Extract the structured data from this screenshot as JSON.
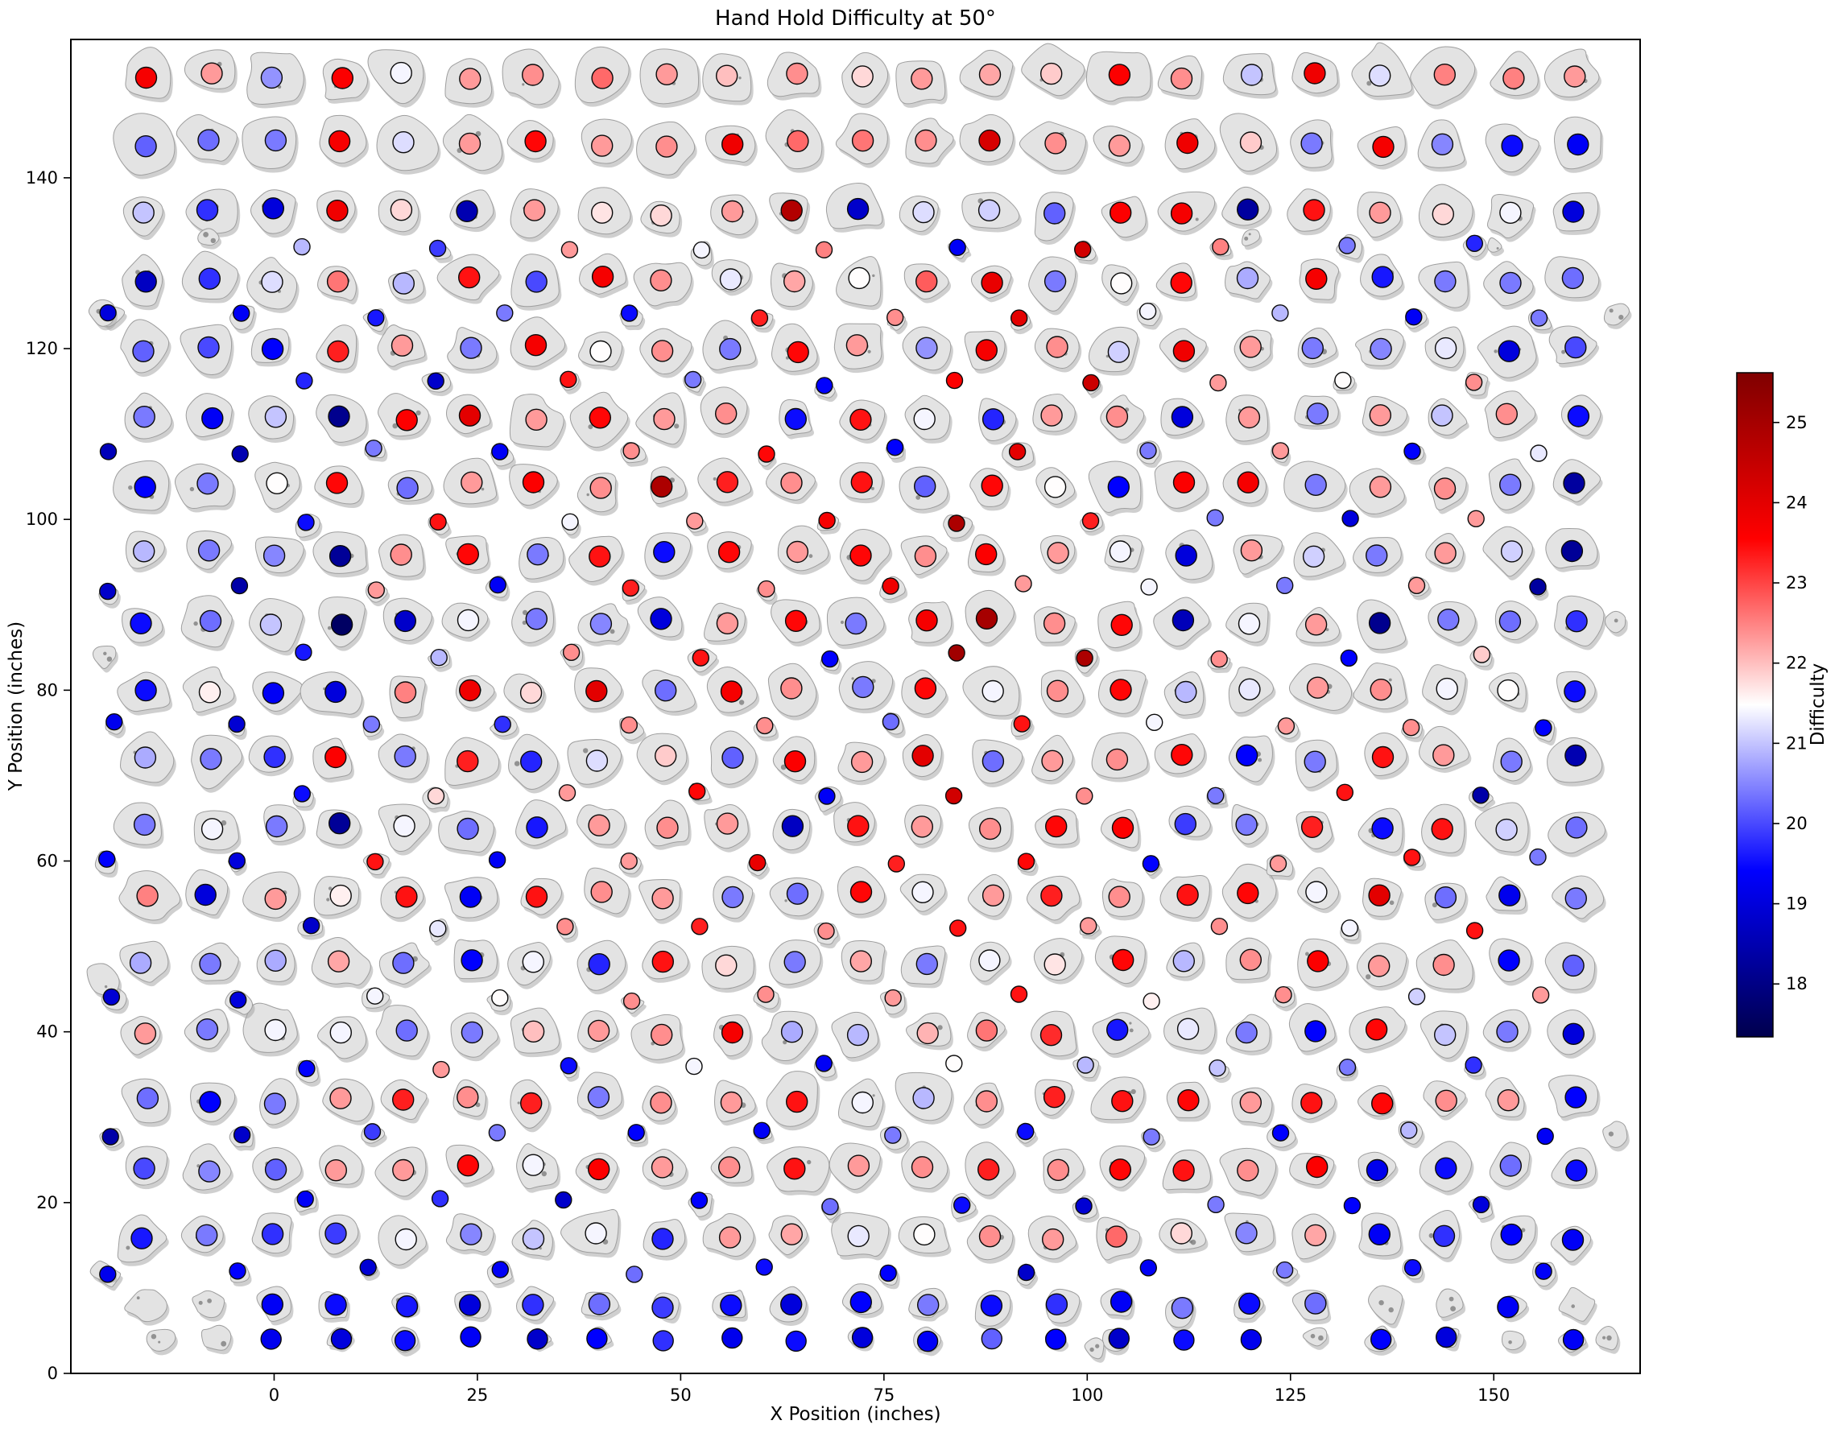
{
  "title": "Hand Hold Difficulty at 50°",
  "axes": {
    "xlabel": "X Position (inches)",
    "ylabel": "Y Position (inches)",
    "x_ticks": [
      0,
      25,
      50,
      75,
      100,
      125,
      150
    ],
    "y_ticks": [
      0,
      20,
      40,
      60,
      80,
      100,
      120,
      140
    ],
    "xlim": [
      -25,
      168
    ],
    "ylim": [
      0,
      156.2
    ]
  },
  "colorbar": {
    "label": "Difficulty",
    "ticks": [
      18,
      19,
      20,
      21,
      22,
      23,
      24,
      25
    ],
    "vmin": 17.34,
    "vmax": 25.62,
    "colormap": "seismic"
  },
  "style": {
    "hold_fill": "#e3e3e3",
    "hold_edge": "#9e9e9e",
    "hold_shadow": "#a0a0a0",
    "dot_outline": "#0a0a0a",
    "background": "#ffffff"
  },
  "chart_data": {
    "type": "scatter",
    "title": "Hand Hold Difficulty at 50°",
    "xlabel": "X Position (inches)",
    "ylabel": "Y Position (inches)",
    "xlim": [
      -25,
      168
    ],
    "ylim": [
      0,
      156.2
    ],
    "color_scale": {
      "colormap": "seismic",
      "vmin": 17.34,
      "vmax": 25.62,
      "label": "Difficulty"
    },
    "grid": false,
    "main_rows": [
      {
        "y": 152,
        "x_start": -16,
        "x_step": 8,
        "values": [
          23.7,
          22.3,
          20.6,
          23.6,
          21.4,
          22.3,
          22.4,
          22.7,
          22.3,
          22.0,
          22.4,
          21.8,
          22.3,
          22.2,
          21.9,
          23.6,
          22.4,
          21.0,
          23.8,
          21.2,
          22.5,
          22.5,
          22.3
        ]
      },
      {
        "y": 144,
        "x_start": -16,
        "x_step": 8,
        "values": [
          20.2,
          20.3,
          20.4,
          23.7,
          21.2,
          22.3,
          23.5,
          22.3,
          22.4,
          23.8,
          22.7,
          22.6,
          22.4,
          24.2,
          22.4,
          22.3,
          23.8,
          21.9,
          20.4,
          23.7,
          20.5,
          19.5,
          19.3
        ]
      },
      {
        "y": 136,
        "x_start": -16,
        "x_step": 8,
        "values": [
          21.0,
          19.8,
          19.0,
          23.8,
          21.8,
          18.5,
          22.3,
          21.7,
          21.8,
          22.3,
          24.8,
          18.8,
          21.2,
          21.1,
          20.2,
          23.6,
          23.7,
          18.3,
          23.4,
          22.3,
          21.8,
          21.4,
          19.0
        ]
      },
      {
        "y": 128,
        "x_start": -16,
        "x_step": 8,
        "values": [
          18.7,
          19.8,
          21.2,
          22.6,
          20.9,
          23.4,
          20.0,
          23.7,
          22.4,
          21.3,
          22.2,
          21.5,
          22.8,
          23.9,
          20.4,
          21.5,
          23.5,
          20.8,
          23.7,
          19.6,
          20.4,
          20.4,
          20.3
        ]
      },
      {
        "y": 120,
        "x_start": -16,
        "x_step": 8,
        "values": [
          20.2,
          20.0,
          19.4,
          23.3,
          22.3,
          20.4,
          23.7,
          21.5,
          22.4,
          20.4,
          23.5,
          22.3,
          20.6,
          23.7,
          22.4,
          21.1,
          23.8,
          22.3,
          20.4,
          20.5,
          21.3,
          19.0,
          20.0
        ]
      },
      {
        "y": 112,
        "x_start": -16,
        "x_step": 8,
        "values": [
          20.4,
          19.3,
          21.0,
          18.1,
          23.6,
          24.0,
          22.3,
          23.5,
          22.3,
          22.4,
          19.5,
          23.4,
          21.4,
          19.7,
          22.3,
          22.4,
          19.0,
          22.3,
          20.4,
          22.3,
          21.0,
          22.4,
          19.5
        ]
      },
      {
        "y": 104,
        "x_start": -16,
        "x_step": 8,
        "values": [
          19.4,
          20.4,
          21.5,
          23.5,
          20.3,
          22.3,
          23.6,
          22.4,
          24.9,
          23.3,
          22.4,
          23.4,
          20.2,
          23.5,
          21.5,
          19.4,
          23.6,
          23.7,
          20.4,
          22.3,
          22.4,
          20.4,
          18.3
        ]
      },
      {
        "y": 96,
        "x_start": -16,
        "x_step": 8,
        "values": [
          20.9,
          20.4,
          20.5,
          18.2,
          22.4,
          23.5,
          20.4,
          23.4,
          19.5,
          23.5,
          22.3,
          23.5,
          22.4,
          23.6,
          22.3,
          21.4,
          19.0,
          22.3,
          21.1,
          20.4,
          22.3,
          21.1,
          18.2
        ]
      },
      {
        "y": 88,
        "x_start": -16,
        "x_step": 8,
        "values": [
          19.5,
          20.3,
          21.0,
          17.6,
          18.8,
          21.4,
          20.4,
          20.5,
          19.0,
          22.3,
          23.5,
          20.4,
          23.7,
          25.0,
          22.4,
          23.5,
          18.6,
          21.4,
          22.3,
          18.1,
          20.4,
          20.3,
          19.8
        ]
      },
      {
        "y": 80,
        "x_start": -16,
        "x_step": 8,
        "values": [
          19.5,
          21.6,
          19.3,
          19.0,
          22.5,
          23.8,
          21.8,
          24.0,
          20.3,
          23.7,
          22.4,
          20.4,
          23.5,
          21.4,
          22.4,
          23.5,
          20.9,
          21.3,
          22.3,
          22.4,
          21.4,
          21.5,
          19.5
        ]
      },
      {
        "y": 72,
        "x_start": -16,
        "x_step": 8,
        "values": [
          20.8,
          20.4,
          19.8,
          23.6,
          20.4,
          23.3,
          19.7,
          21.2,
          21.9,
          20.2,
          23.6,
          22.3,
          24.0,
          20.3,
          22.3,
          22.4,
          23.5,
          19.4,
          20.4,
          23.4,
          22.3,
          20.4,
          18.5
        ]
      },
      {
        "y": 64,
        "x_start": -16,
        "x_step": 8,
        "values": [
          20.4,
          21.4,
          20.4,
          18.2,
          21.4,
          20.3,
          19.6,
          22.3,
          22.4,
          22.3,
          18.7,
          23.4,
          22.3,
          22.4,
          23.5,
          23.6,
          19.9,
          20.4,
          23.3,
          19.5,
          23.4,
          21.1,
          20.3
        ]
      },
      {
        "y": 56,
        "x_start": -16,
        "x_step": 8,
        "values": [
          22.5,
          19.0,
          22.3,
          21.6,
          23.4,
          19.3,
          23.4,
          22.4,
          22.3,
          20.4,
          20.3,
          23.5,
          21.4,
          22.3,
          23.3,
          22.4,
          23.4,
          23.5,
          21.4,
          24.0,
          20.3,
          19.2,
          20.4
        ]
      },
      {
        "y": 48,
        "x_start": -16,
        "x_step": 8,
        "values": [
          20.8,
          20.4,
          20.8,
          22.2,
          20.3,
          19.4,
          21.4,
          19.7,
          23.4,
          21.8,
          20.4,
          22.2,
          20.4,
          21.4,
          21.7,
          23.5,
          20.9,
          22.4,
          23.6,
          22.3,
          22.4,
          19.4,
          20.2
        ]
      },
      {
        "y": 40,
        "x_start": -16,
        "x_step": 8,
        "values": [
          22.3,
          20.4,
          21.4,
          21.4,
          20.3,
          20.4,
          22.0,
          22.3,
          22.4,
          23.7,
          20.8,
          20.9,
          22.1,
          22.6,
          23.2,
          19.6,
          21.3,
          20.4,
          19.4,
          23.5,
          21.0,
          20.4,
          19.0
        ]
      },
      {
        "y": 32,
        "x_start": -16,
        "x_step": 8,
        "values": [
          20.3,
          19.4,
          20.4,
          22.3,
          23.3,
          22.4,
          23.3,
          20.4,
          22.4,
          22.3,
          23.4,
          21.4,
          20.9,
          22.4,
          23.3,
          23.4,
          23.5,
          22.3,
          23.4,
          23.5,
          22.4,
          22.3,
          19.4
        ]
      },
      {
        "y": 24,
        "x_start": -16,
        "x_step": 8,
        "values": [
          20.0,
          20.5,
          20.2,
          22.3,
          22.3,
          23.5,
          21.4,
          23.6,
          22.3,
          22.4,
          23.4,
          22.3,
          22.4,
          23.3,
          22.4,
          23.5,
          23.4,
          22.4,
          23.6,
          19.2,
          19.5,
          20.3,
          19.5
        ]
      },
      {
        "y": 16,
        "x_start": -16,
        "x_step": 8,
        "values": [
          19.6,
          20.4,
          19.8,
          19.9,
          21.4,
          20.5,
          21.0,
          21.4,
          19.7,
          22.3,
          22.2,
          21.3,
          21.5,
          22.4,
          22.3,
          22.7,
          21.8,
          20.5,
          22.2,
          19.3,
          19.8,
          19.4,
          19.3
        ]
      },
      {
        "y": 8,
        "x_start": -16,
        "x_step": 8,
        "values": [
          null,
          null,
          19.3,
          19.5,
          19.6,
          19.0,
          19.8,
          20.3,
          19.9,
          19.5,
          19.0,
          19.4,
          20.4,
          19.5,
          19.8,
          19.3,
          20.4,
          19.5,
          20.3,
          null,
          null,
          19.3,
          null
        ]
      }
    ],
    "bottom_row": {
      "y": 4,
      "x_start": 0,
      "x_step": 8,
      "values": [
        19.2,
        19.0,
        19.5,
        19.3,
        18.8,
        19.4,
        19.8,
        19.2,
        19.5,
        19.0,
        19.3,
        20.2,
        19.4,
        18.8,
        19.5,
        19.2,
        null,
        19.4,
        19.0,
        null,
        19.3
      ]
    },
    "intermediate_rows": [
      {
        "y": 132,
        "x_start": 4,
        "x_step": 16,
        "values": [
          20.9,
          19.9,
          22.3,
          21.4,
          22.5,
          19.3,
          24.3,
          22.5,
          20.4,
          19.7
        ]
      },
      {
        "y": 124,
        "x_start": -20,
        "x_step": 16,
        "values": [
          19.0,
          19.3,
          19.6,
          20.4,
          19.5,
          23.3,
          22.4,
          24.0,
          21.4,
          20.9,
          19.3,
          20.4
        ]
      },
      {
        "y": 116,
        "x_start": 4,
        "x_step": 16,
        "values": [
          19.7,
          18.8,
          23.4,
          20.4,
          19.4,
          23.6,
          24.4,
          22.3,
          21.5,
          22.4
        ]
      },
      {
        "y": 108,
        "x_start": -20,
        "x_step": 16,
        "values": [
          18.6,
          18.5,
          20.4,
          19.3,
          22.4,
          23.5,
          19.4,
          24.0,
          20.4,
          22.3,
          19.4,
          21.3
        ]
      },
      {
        "y": 100,
        "x_start": 4,
        "x_step": 16,
        "values": [
          19.5,
          23.4,
          21.4,
          22.3,
          23.7,
          24.9,
          23.3,
          20.4,
          19.0,
          22.3
        ]
      },
      {
        "y": 92,
        "x_start": -20,
        "x_step": 16,
        "values": [
          18.8,
          18.4,
          22.3,
          19.3,
          23.3,
          22.4,
          23.8,
          22.3,
          21.4,
          20.4,
          22.3,
          18.3
        ]
      },
      {
        "y": 84,
        "x_start": 4,
        "x_step": 16,
        "values": [
          19.6,
          20.9,
          22.4,
          23.4,
          19.4,
          25.1,
          24.9,
          22.4,
          19.4,
          21.9
        ]
      },
      {
        "y": 76,
        "x_start": -20,
        "x_step": 16,
        "values": [
          19.2,
          18.9,
          20.4,
          19.8,
          22.4,
          22.4,
          20.3,
          23.4,
          21.4,
          22.3,
          22.4,
          19.4
        ]
      },
      {
        "y": 68,
        "x_start": 4,
        "x_step": 16,
        "values": [
          19.5,
          21.8,
          22.3,
          23.5,
          19.3,
          24.3,
          22.4,
          20.4,
          23.4,
          18.4
        ]
      },
      {
        "y": 60,
        "x_start": -20,
        "x_step": 16,
        "values": [
          19.4,
          19.0,
          23.4,
          19.3,
          22.3,
          23.9,
          23.3,
          23.5,
          19.4,
          22.3,
          23.4,
          20.4
        ]
      },
      {
        "y": 52,
        "x_start": 4,
        "x_step": 16,
        "values": [
          18.8,
          21.3,
          22.4,
          23.3,
          22.4,
          23.4,
          22.3,
          22.4,
          21.4,
          23.4
        ]
      },
      {
        "y": 44,
        "x_start": -20,
        "x_step": 16,
        "values": [
          18.9,
          19.0,
          21.4,
          21.5,
          22.4,
          22.4,
          22.3,
          23.4,
          21.6,
          22.4,
          21.1,
          22.3
        ]
      },
      {
        "y": 36,
        "x_start": 4,
        "x_step": 16,
        "values": [
          19.4,
          22.3,
          19.5,
          21.4,
          19.3,
          21.5,
          20.9,
          21.0,
          20.4,
          19.8
        ]
      },
      {
        "y": 28,
        "x_start": -20,
        "x_step": 16,
        "values": [
          18.4,
          18.8,
          19.9,
          20.4,
          19.4,
          19.3,
          20.4,
          19.5,
          20.4,
          19.4,
          20.9,
          19.3
        ]
      },
      {
        "y": 20,
        "x_start": 4,
        "x_step": 16,
        "values": [
          19.3,
          19.8,
          18.8,
          19.4,
          20.3,
          19.5,
          18.9,
          20.4,
          19.4,
          19.0
        ]
      },
      {
        "y": 12,
        "x_start": -20,
        "x_step": 16,
        "values": [
          19.2,
          19.4,
          18.9,
          19.3,
          20.3,
          19.5,
          19.4,
          18.8,
          19.3,
          20.4,
          19.5,
          19.3
        ]
      }
    ],
    "extra_blobs": [
      {
        "x": -21,
        "y": 124,
        "r": 14
      },
      {
        "x": -21,
        "y": 84,
        "r": 12
      },
      {
        "x": -21,
        "y": 46,
        "r": 16
      },
      {
        "x": -21,
        "y": 12,
        "r": 10
      },
      {
        "x": 165,
        "y": 124,
        "r": 12
      },
      {
        "x": 165,
        "y": 88,
        "r": 10
      },
      {
        "x": 165,
        "y": 28,
        "r": 13
      },
      {
        "x": -14,
        "y": 4,
        "r": 13
      },
      {
        "x": -7,
        "y": 4,
        "r": 15
      },
      {
        "x": 120,
        "y": 133,
        "r": 9
      },
      {
        "x": -8,
        "y": 133,
        "r": 9
      },
      {
        "x": 150,
        "y": 132,
        "r": 8
      },
      {
        "x": 164,
        "y": 4,
        "r": 11
      },
      {
        "x": 101,
        "y": 3,
        "r": 10
      }
    ]
  }
}
